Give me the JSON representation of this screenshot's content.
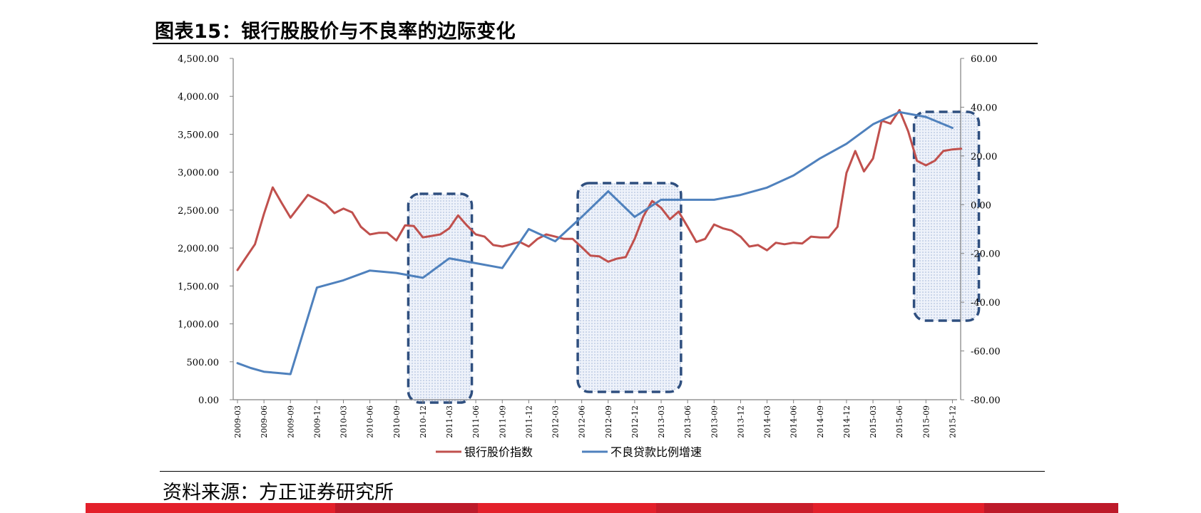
{
  "header": {
    "title": "图表15：银行股股价与不良率的边际变化"
  },
  "footer": {
    "source": "资料来源：方正证券研究所"
  },
  "colors": {
    "bank_index": "#c0504d",
    "npl_growth": "#4f81bd",
    "highlight_border": "#2f4f7f",
    "highlight_fill": "#dbe5f3",
    "footer_red": "#e3202b",
    "footer_dark": "#bd1a2a"
  },
  "chart_data": {
    "type": "line",
    "x_tick_labels": [
      "2009-03",
      "2009-06",
      "2009-09",
      "2009-12",
      "2010-03",
      "2010-06",
      "2010-09",
      "2010-12",
      "2011-03",
      "2011-06",
      "2011-09",
      "2011-12",
      "2012-03",
      "2012-06",
      "2012-09",
      "2012-12",
      "2013-03",
      "2013-06",
      "2013-09",
      "2013-12",
      "2014-03",
      "2014-06",
      "2014-09",
      "2014-12",
      "2015-03",
      "2015-06",
      "2015-09",
      "2015-12"
    ],
    "left_axis": {
      "ylim": [
        0,
        4500
      ],
      "ticks": [
        "0.00",
        "500.00",
        "1,000.00",
        "1,500.00",
        "2,000.00",
        "2,500.00",
        "3,000.00",
        "3,500.00",
        "4,000.00",
        "4,500.00"
      ]
    },
    "right_axis": {
      "ylim": [
        -80,
        60
      ],
      "ticks": [
        "-80.00",
        "-60.00",
        "-40.00",
        "-20.00",
        "0.00",
        "20.00",
        "40.00",
        "60.00"
      ]
    },
    "series": [
      {
        "name": "银行股价指数",
        "axis": "left",
        "x": [
          0,
          0.66,
          1,
          1.33,
          1.66,
          2,
          2.33,
          2.66,
          3,
          3.33,
          3.66,
          4,
          4.33,
          4.66,
          5,
          5.33,
          5.66,
          6,
          6.33,
          6.66,
          7,
          7.33,
          7.66,
          8,
          8.33,
          8.66,
          9,
          9.33,
          9.66,
          10,
          10.33,
          10.66,
          11,
          11.33,
          11.66,
          12,
          12.33,
          12.66,
          13,
          13.33,
          13.66,
          14,
          14.33,
          14.66,
          15,
          15.33,
          15.66,
          16,
          16.33,
          16.66,
          17,
          17.33,
          17.66,
          18,
          18.33,
          18.66,
          19,
          19.33,
          19.66,
          20,
          20.33,
          20.66,
          21,
          21.33,
          21.66,
          22,
          22.33,
          22.66,
          23,
          23.33,
          23.66,
          24,
          24.33,
          24.66,
          25,
          25.33,
          25.66,
          26,
          26.33,
          26.66,
          27,
          27.33
        ],
        "values": [
          1710,
          2050,
          2450,
          2800,
          2600,
          2400,
          2550,
          2700,
          2640,
          2580,
          2460,
          2520,
          2470,
          2280,
          2180,
          2200,
          2200,
          2100,
          2300,
          2290,
          2140,
          2160,
          2180,
          2260,
          2430,
          2300,
          2180,
          2150,
          2040,
          2020,
          2050,
          2080,
          2020,
          2120,
          2180,
          2150,
          2120,
          2120,
          2010,
          1900,
          1890,
          1820,
          1860,
          1880,
          2120,
          2420,
          2620,
          2530,
          2380,
          2480,
          2280,
          2080,
          2120,
          2310,
          2260,
          2230,
          2150,
          2020,
          2040,
          1970,
          2070,
          2050,
          2070,
          2060,
          2150,
          2140,
          2140,
          2280,
          2990,
          3280,
          3010,
          3180,
          3680,
          3640,
          3820,
          3540,
          3150,
          3090,
          3150,
          3280,
          3300,
          3310
        ]
      },
      {
        "name": "不良贷款比例增速",
        "axis": "right",
        "x": [
          0,
          0.5,
          1,
          1.5,
          2,
          3,
          4,
          5,
          6,
          7,
          8,
          9,
          10,
          11,
          12,
          13,
          14,
          15,
          16,
          17,
          18,
          19,
          20,
          21,
          22,
          23,
          24,
          25,
          26,
          27
        ],
        "values": [
          -65,
          -67,
          -68.5,
          -69,
          -69.5,
          -34,
          -31,
          -27,
          -28,
          -30,
          -22,
          -24,
          -26,
          -10,
          -15,
          -5,
          5.5,
          -5,
          2,
          2,
          2,
          4,
          7,
          12,
          19,
          25,
          33,
          38,
          36,
          31.5
        ]
      }
    ],
    "highlights": [
      {
        "x_from": 6.45,
        "x_to": 8.85
      },
      {
        "x_from": 12.85,
        "x_to": 16.75
      },
      {
        "x_from": 25.55,
        "x_to": 28.0
      }
    ],
    "legend": {
      "placement": "bottom"
    }
  }
}
